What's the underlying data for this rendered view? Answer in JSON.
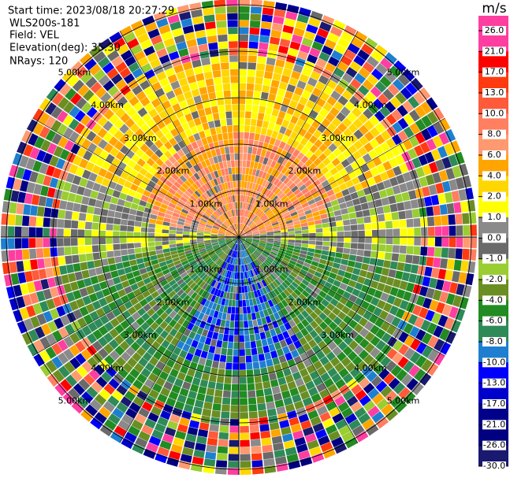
{
  "header": {
    "start_time": "Start time: 2023/08/18 20:27:29",
    "instrument": "WLS200s-181",
    "field": "Field: VEL",
    "elevation": "Elevation(deg): 35.30",
    "nrays": "NRays: 120"
  },
  "range_rings": {
    "labels": [
      "1.00km",
      "2.00km",
      "3.00km",
      "4.00km",
      "5.00km"
    ]
  },
  "colorbar": {
    "unit": "m/s",
    "ticks": [
      {
        "value": 26,
        "label": "26.0"
      },
      {
        "value": 21,
        "label": "21.0"
      },
      {
        "value": 17,
        "label": "17.0"
      },
      {
        "value": 13,
        "label": "13.0"
      },
      {
        "value": 10,
        "label": "10.0"
      },
      {
        "value": 8,
        "label": "8.0"
      },
      {
        "value": 6,
        "label": "6.0"
      },
      {
        "value": 4,
        "label": "4.0"
      },
      {
        "value": 2,
        "label": "2.0"
      },
      {
        "value": 1,
        "label": "1.0"
      },
      {
        "value": 0,
        "label": "0.0"
      },
      {
        "value": -1,
        "label": "-1.0"
      },
      {
        "value": -2,
        "label": "-2.0"
      },
      {
        "value": -4,
        "label": "-4.0"
      },
      {
        "value": -6,
        "label": "-6.0"
      },
      {
        "value": -8,
        "label": "-8.0"
      },
      {
        "value": -10,
        "label": "-10.0"
      },
      {
        "value": -13,
        "label": "-13.0"
      },
      {
        "value": -17,
        "label": "-17.0"
      },
      {
        "value": -21,
        "label": "-21.0"
      },
      {
        "value": -26,
        "label": "-26.0"
      },
      {
        "value": -30,
        "label": "-30.0"
      }
    ],
    "colors": [
      "#ff3ea0",
      "#ff0000",
      "#ff3a10",
      "#ff5a3a",
      "#ff7f60",
      "#ff9a70",
      "#ffa500",
      "#ffd700",
      "#ffff00",
      "#8a8a8a",
      "#6a6a6a",
      "#9acd32",
      "#6b8e23",
      "#228b22",
      "#2e8b57",
      "#1e7fd0",
      "#0000ff",
      "#0000cd",
      "#00008b",
      "#000080",
      "#191970"
    ]
  }
}
